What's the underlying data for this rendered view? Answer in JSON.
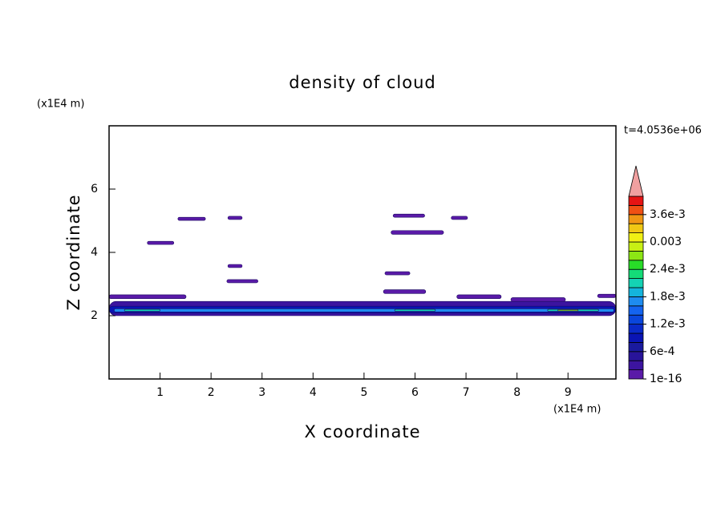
{
  "chart_data": {
    "type": "contour",
    "title": "density of cloud",
    "xlabel": "X coordinate",
    "ylabel": "Z coordinate",
    "xunit": "(x1E4 m)",
    "yunit": "(x1E4 m)",
    "time_label": "t=4.0536e+06",
    "xlim": [
      0,
      9.94
    ],
    "ylim": [
      0,
      8
    ],
    "xticks": [
      1,
      2,
      3,
      4,
      5,
      6,
      7,
      8,
      9
    ],
    "yticks": [
      2,
      4,
      6
    ],
    "clim": [
      0,
      0.004
    ],
    "colorbar_ticks": [
      1e-16,
      {
        "value": 0.0006,
        "label": "6e-4"
      },
      {
        "value": 0.0012,
        "label": "1.2e-3"
      },
      {
        "value": 0.0018,
        "label": "1.8e-3"
      },
      {
        "value": 0.0024,
        "label": "2.4e-3"
      },
      0.003,
      {
        "value": 0.0036,
        "label": "3.6e-3"
      }
    ],
    "colors": [
      "#5a1aa8",
      "#3c14a0",
      "#28149a",
      "#1a1a9e",
      "#0a14b4",
      "#0a2ac8",
      "#0a46dc",
      "#1464f0",
      "#1e8cf0",
      "#14b4dc",
      "#14d2b4",
      "#14dc78",
      "#28dc28",
      "#8ce614",
      "#c8f014",
      "#f0f014",
      "#f0c814",
      "#f09614",
      "#f05014",
      "#e61414"
    ],
    "over_color": "#f0a0a0",
    "patches": [
      {
        "x": [
          0,
          9.94
        ],
        "z": [
          2.0,
          2.45
        ],
        "value": 0.0003
      },
      {
        "x": [
          0,
          1.51
        ],
        "z": [
          2.54,
          2.66
        ],
        "value": 0.0001
      },
      {
        "x": [
          6.82,
          7.69
        ],
        "z": [
          2.54,
          2.66
        ],
        "value": 0.0001
      },
      {
        "x": [
          7.88,
          8.95
        ],
        "z": [
          2.45,
          2.57
        ],
        "value": 0.0001
      },
      {
        "x": [
          9.58,
          9.94
        ],
        "z": [
          2.57,
          2.68
        ],
        "value": 0.0001
      },
      {
        "x": [
          0,
          9.94
        ],
        "z": [
          2.08,
          2.3
        ],
        "value": 0.0009
      },
      {
        "x": [
          0.1,
          9.9
        ],
        "z": [
          2.12,
          2.22
        ],
        "value": 0.0017
      },
      {
        "x": [
          0.3,
          1.0
        ],
        "z": [
          2.14,
          2.2
        ],
        "value": 0.0021
      },
      {
        "x": [
          5.6,
          6.4
        ],
        "z": [
          2.14,
          2.2
        ],
        "value": 0.0021
      },
      {
        "x": [
          8.6,
          9.6
        ],
        "z": [
          2.14,
          2.2
        ],
        "value": 0.0021
      },
      {
        "x": [
          8.8,
          9.2
        ],
        "z": [
          2.15,
          2.19
        ],
        "value": 0.0027
      },
      {
        "x": [
          0.75,
          1.27
        ],
        "z": [
          4.25,
          4.35
        ],
        "value": 0.0001
      },
      {
        "x": [
          1.35,
          1.89
        ],
        "z": [
          5.01,
          5.11
        ],
        "value": 0.0001
      },
      {
        "x": [
          2.33,
          2.61
        ],
        "z": [
          5.04,
          5.14
        ],
        "value": 0.0001
      },
      {
        "x": [
          2.33,
          2.61
        ],
        "z": [
          3.52,
          3.62
        ],
        "value": 0.0001
      },
      {
        "x": [
          2.31,
          2.92
        ],
        "z": [
          3.04,
          3.14
        ],
        "value": 0.0001
      },
      {
        "x": [
          5.57,
          6.19
        ],
        "z": [
          5.11,
          5.21
        ],
        "value": 0.0001
      },
      {
        "x": [
          5.53,
          6.56
        ],
        "z": [
          4.57,
          4.69
        ],
        "value": 0.0001
      },
      {
        "x": [
          5.41,
          5.9
        ],
        "z": [
          3.29,
          3.39
        ],
        "value": 0.0001
      },
      {
        "x": [
          5.38,
          6.21
        ],
        "z": [
          2.7,
          2.82
        ],
        "value": 0.0001
      },
      {
        "x": [
          6.71,
          7.03
        ],
        "z": [
          5.04,
          5.14
        ],
        "value": 0.0001
      }
    ]
  }
}
